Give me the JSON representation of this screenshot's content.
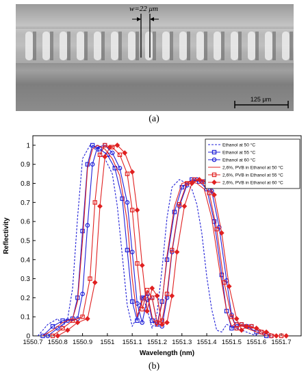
{
  "micrograph": {
    "width_annotation": "w=22 μm",
    "scale_bar_label": "125 μm"
  },
  "panel_labels": {
    "a": "(a)",
    "b": "(b)"
  },
  "colors": {
    "blue": "#1f1fd8",
    "red": "#e02020",
    "background_gray": "#8c8c8c"
  },
  "chart_data": {
    "type": "line",
    "xlabel": "Wavelength (nm)",
    "ylabel": "Reflectivity",
    "xlim": [
      1550.7,
      1551.78
    ],
    "ylim": [
      0,
      1.05
    ],
    "xticks": [
      1550.7,
      1550.8,
      1550.9,
      1551,
      1551.1,
      1551.2,
      1551.3,
      1551.4,
      1551.5,
      1551.6,
      1551.7
    ],
    "xtick_labels": [
      "1550.7",
      "1550.8",
      "1550.9",
      "1551",
      "1551.1",
      "1551.2",
      "1551.3",
      "1551.4",
      "1551.5",
      "1551.6",
      "1551.7"
    ],
    "yticks": [
      0,
      0.1,
      0.2,
      0.3,
      0.4,
      0.5,
      0.6,
      0.7,
      0.8,
      0.9,
      1
    ],
    "ytick_labels": [
      "0",
      "0.1",
      "0.2",
      "0.3",
      "0.4",
      "0.5",
      "0.6",
      "0.7",
      "0.8",
      "0.9",
      "1"
    ],
    "grid": false,
    "legend_position": "top-right",
    "series": [
      {
        "name": "Ethanol at 50 °C",
        "color": "#1f1fd8",
        "line": "dashed",
        "marker": "none",
        "x": [
          1550.72,
          1550.76,
          1550.8,
          1550.82,
          1550.84,
          1550.86,
          1550.88,
          1550.9,
          1550.93,
          1550.96,
          1550.99,
          1551.02,
          1551.04,
          1551.06,
          1551.08,
          1551.1,
          1551.12,
          1551.14,
          1551.16,
          1551.18,
          1551.2,
          1551.22,
          1551.24,
          1551.26,
          1551.29,
          1551.32,
          1551.34,
          1551.36,
          1551.38,
          1551.4,
          1551.42,
          1551.44,
          1551.46,
          1551.48,
          1551.52,
          1551.56,
          1551.6
        ],
        "y": [
          0.0,
          0.06,
          0.09,
          0.05,
          0.09,
          0.25,
          0.62,
          0.93,
          1.0,
          0.97,
          0.93,
          0.85,
          0.68,
          0.42,
          0.16,
          0.05,
          0.1,
          0.21,
          0.14,
          0.04,
          0.12,
          0.35,
          0.62,
          0.78,
          0.82,
          0.8,
          0.77,
          0.69,
          0.54,
          0.31,
          0.14,
          0.03,
          0.02,
          0.06,
          0.04,
          0.02,
          0.0
        ]
      },
      {
        "name": "Ethanol at 55 °C",
        "color": "#1f1fd8",
        "line": "solid",
        "marker": "square",
        "x": [
          1550.74,
          1550.78,
          1550.82,
          1550.86,
          1550.88,
          1550.9,
          1550.92,
          1550.94,
          1550.97,
          1551.0,
          1551.03,
          1551.06,
          1551.08,
          1551.1,
          1551.12,
          1551.14,
          1551.16,
          1551.18,
          1551.2,
          1551.22,
          1551.24,
          1551.27,
          1551.3,
          1551.34,
          1551.37,
          1551.4,
          1551.43,
          1551.46,
          1551.48,
          1551.5,
          1551.52,
          1551.56,
          1551.6,
          1551.64
        ],
        "y": [
          0.0,
          0.05,
          0.08,
          0.09,
          0.2,
          0.55,
          0.9,
          1.0,
          0.98,
          0.95,
          0.88,
          0.72,
          0.45,
          0.18,
          0.08,
          0.2,
          0.22,
          0.08,
          0.06,
          0.18,
          0.4,
          0.65,
          0.78,
          0.82,
          0.81,
          0.77,
          0.6,
          0.32,
          0.13,
          0.04,
          0.06,
          0.05,
          0.02,
          0.0
        ]
      },
      {
        "name": "Ethanol at 60 °C",
        "color": "#1f1fd8",
        "line": "solid",
        "marker": "circle",
        "x": [
          1550.76,
          1550.8,
          1550.84,
          1550.88,
          1550.9,
          1550.92,
          1550.94,
          1550.96,
          1550.99,
          1551.02,
          1551.05,
          1551.08,
          1551.1,
          1551.12,
          1551.14,
          1551.16,
          1551.18,
          1551.2,
          1551.22,
          1551.24,
          1551.26,
          1551.29,
          1551.32,
          1551.36,
          1551.39,
          1551.42,
          1551.45,
          1551.48,
          1551.5,
          1551.52,
          1551.54,
          1551.58,
          1551.62,
          1551.66
        ],
        "y": [
          0.0,
          0.04,
          0.08,
          0.09,
          0.22,
          0.58,
          0.9,
          0.99,
          1.0,
          0.96,
          0.88,
          0.7,
          0.44,
          0.17,
          0.07,
          0.19,
          0.2,
          0.07,
          0.05,
          0.2,
          0.44,
          0.68,
          0.79,
          0.82,
          0.81,
          0.76,
          0.57,
          0.29,
          0.11,
          0.04,
          0.06,
          0.05,
          0.02,
          0.0
        ]
      },
      {
        "name": "2,6%, PVB in Ethanol at 50 °C",
        "color": "#e02020",
        "line": "solid",
        "marker": "none",
        "x": [
          1550.74,
          1550.78,
          1550.82,
          1550.86,
          1550.88,
          1550.9,
          1550.92,
          1550.94,
          1550.96,
          1550.99,
          1551.02,
          1551.05,
          1551.08,
          1551.1,
          1551.12,
          1551.14,
          1551.16,
          1551.18,
          1551.2,
          1551.22,
          1551.24,
          1551.27,
          1551.3,
          1551.33,
          1551.36,
          1551.39,
          1551.42,
          1551.45,
          1551.48,
          1551.5,
          1551.52,
          1551.56,
          1551.6,
          1551.64
        ],
        "y": [
          0.0,
          0.03,
          0.07,
          0.09,
          0.18,
          0.5,
          0.88,
          0.98,
          1.0,
          0.98,
          0.93,
          0.84,
          0.6,
          0.3,
          0.1,
          0.18,
          0.23,
          0.1,
          0.05,
          0.17,
          0.42,
          0.68,
          0.8,
          0.81,
          0.8,
          0.77,
          0.62,
          0.36,
          0.13,
          0.05,
          0.07,
          0.04,
          0.02,
          0.0
        ]
      },
      {
        "name": "2,6%, PVB in Ethanol at 55 °C",
        "color": "#e02020",
        "line": "solid",
        "marker": "square",
        "x": [
          1550.78,
          1550.82,
          1550.86,
          1550.9,
          1550.93,
          1550.95,
          1550.97,
          1550.99,
          1551.02,
          1551.05,
          1551.08,
          1551.1,
          1551.12,
          1551.14,
          1551.16,
          1551.18,
          1551.2,
          1551.22,
          1551.24,
          1551.26,
          1551.29,
          1551.32,
          1551.35,
          1551.38,
          1551.41,
          1551.44,
          1551.47,
          1551.5,
          1551.52,
          1551.54,
          1551.58,
          1551.62,
          1551.66,
          1551.7
        ],
        "y": [
          0.0,
          0.04,
          0.08,
          0.1,
          0.3,
          0.7,
          0.95,
          1.0,
          0.99,
          0.95,
          0.85,
          0.66,
          0.38,
          0.14,
          0.24,
          0.2,
          0.07,
          0.08,
          0.22,
          0.45,
          0.69,
          0.8,
          0.82,
          0.81,
          0.75,
          0.56,
          0.28,
          0.1,
          0.04,
          0.06,
          0.05,
          0.02,
          0.0,
          0.0
        ]
      },
      {
        "name": "2,6%, PVB in Ethanol at 60 °C",
        "color": "#e02020",
        "line": "solid",
        "marker": "diamond",
        "x": [
          1550.8,
          1550.84,
          1550.88,
          1550.92,
          1550.95,
          1550.97,
          1550.99,
          1551.01,
          1551.04,
          1551.07,
          1551.1,
          1551.12,
          1551.14,
          1551.16,
          1551.18,
          1551.2,
          1551.22,
          1551.24,
          1551.26,
          1551.28,
          1551.31,
          1551.34,
          1551.37,
          1551.4,
          1551.43,
          1551.46,
          1551.49,
          1551.52,
          1551.54,
          1551.56,
          1551.6,
          1551.64,
          1551.68,
          1551.72
        ],
        "y": [
          0.0,
          0.03,
          0.07,
          0.09,
          0.28,
          0.68,
          0.94,
          0.99,
          1.0,
          0.96,
          0.86,
          0.66,
          0.37,
          0.13,
          0.25,
          0.21,
          0.06,
          0.07,
          0.21,
          0.44,
          0.68,
          0.8,
          0.82,
          0.81,
          0.74,
          0.54,
          0.26,
          0.09,
          0.03,
          0.05,
          0.04,
          0.02,
          0.0,
          0.0
        ]
      }
    ]
  }
}
